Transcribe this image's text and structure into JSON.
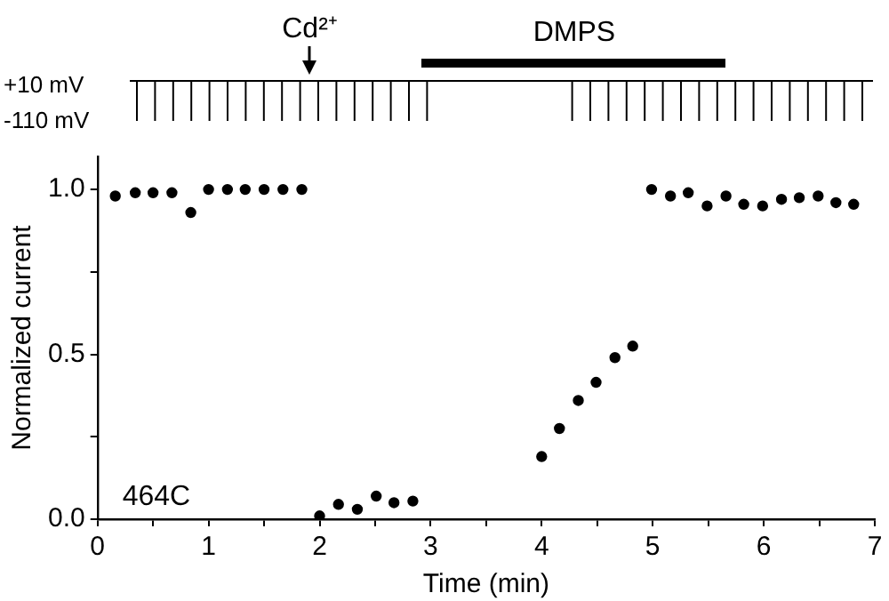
{
  "chart_data": {
    "type": "scatter",
    "xlabel": "Time (min)",
    "ylabel": "Normalized current",
    "x": [
      0.16,
      0.34,
      0.5,
      0.67,
      0.84,
      1.0,
      1.17,
      1.33,
      1.5,
      1.67,
      1.84,
      2.0,
      2.17,
      2.34,
      2.51,
      2.67,
      2.84,
      4.0,
      4.16,
      4.33,
      4.49,
      4.66,
      4.82,
      4.99,
      5.16,
      5.32,
      5.49,
      5.66,
      5.82,
      5.99,
      6.16,
      6.32,
      6.49,
      6.65,
      6.81
    ],
    "values": [
      0.98,
      0.99,
      0.99,
      0.99,
      0.93,
      1.0,
      1.0,
      1.0,
      1.0,
      1.0,
      1.0,
      0.01,
      0.045,
      0.03,
      0.07,
      0.05,
      0.055,
      0.19,
      0.275,
      0.36,
      0.415,
      0.49,
      0.525,
      1.0,
      0.98,
      0.99,
      0.95,
      0.98,
      0.955,
      0.95,
      0.97,
      0.975,
      0.98,
      0.96,
      0.955
    ],
    "color": "#000000",
    "marker": "circle",
    "xlim": [
      0,
      7
    ],
    "xticks": [
      0,
      {
        "value": 0.5,
        "label": null
      },
      1,
      {
        "value": 1.5,
        "label": null
      },
      2,
      {
        "value": 2.5,
        "label": null
      },
      3,
      {
        "value": 3.5,
        "label": null
      },
      4,
      {
        "value": 4.5,
        "label": null
      },
      5,
      {
        "value": 5.5,
        "label": null
      },
      6,
      {
        "value": 6.5,
        "label": null
      },
      7
    ],
    "ylim": [
      0,
      1.1
    ],
    "yticks": [
      {
        "value": 0,
        "label": "0.0"
      },
      {
        "value": 0.25,
        "label": null
      },
      {
        "value": 0.5,
        "label": "0.5"
      },
      {
        "value": 0.75,
        "label": null
      },
      {
        "value": 1.0,
        "label": "1.0"
      }
    ],
    "annotations": [
      "+10 mV",
      "-110 mV",
      "464C",
      "Cd²⁺",
      "DMPS"
    ],
    "grid": false,
    "legend": false
  }
}
